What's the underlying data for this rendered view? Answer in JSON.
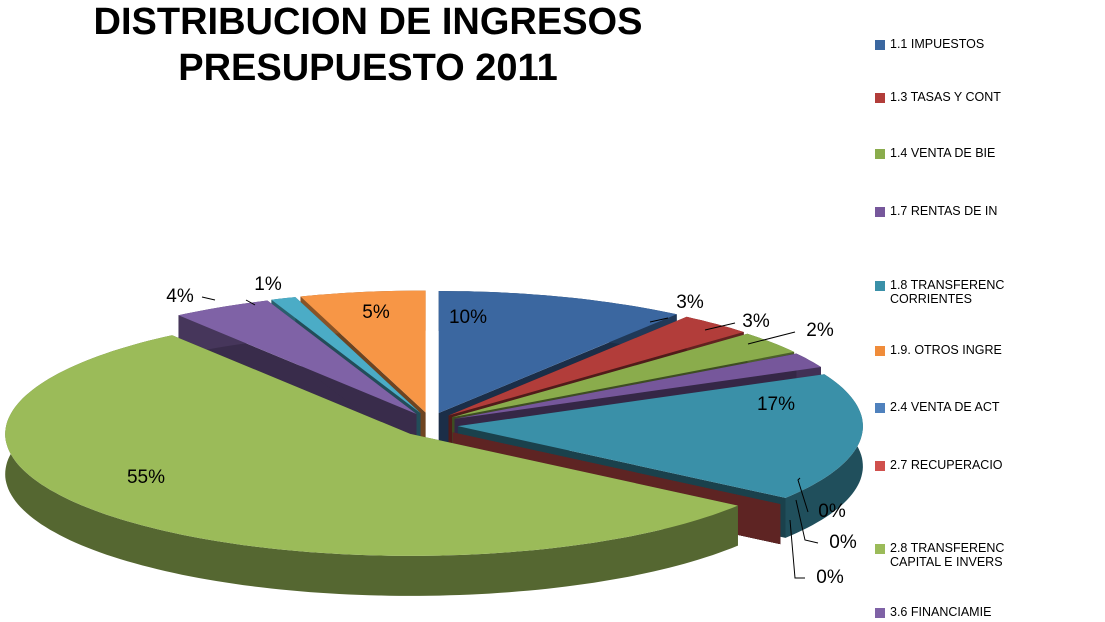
{
  "chart_data": {
    "type": "pie3d",
    "title": [
      "DISTRIBUCION DE INGRESOS",
      "PRESUPUESTO 2011"
    ],
    "categories": [
      "1.1 IMPUESTOS",
      "1.3 TASAS Y CONT",
      "1.4 VENTA DE BIE",
      "1.7 RENTAS DE IN",
      "1.8 TRANSFERENC\nCORRIENTES",
      "1.9. OTROS INGRE",
      "2.4 VENTA DE ACT",
      "2.7 RECUPERACIO",
      "2.8 TRANSFERENC\nCAPITAL E INVERS",
      "3.6 FINANCIAMIE",
      null,
      null
    ],
    "values": [
      10,
      3,
      3,
      2,
      17,
      0,
      0,
      0,
      55,
      4,
      1,
      5
    ],
    "value_labels": [
      "10%",
      "3%",
      "3%",
      "2%",
      "17%",
      "0%",
      "0%",
      "0%",
      "55%",
      "4%",
      "1%",
      "5%"
    ],
    "colors": [
      "#3b67a0",
      "#b23d3a",
      "#8aac4c",
      "#76579b",
      "#3a90a8",
      "#f08c3a",
      "#4f81bd",
      "#d0504d",
      "#9bbb59",
      "#7f62a6",
      "#4bacc6",
      "#f79646"
    ]
  }
}
